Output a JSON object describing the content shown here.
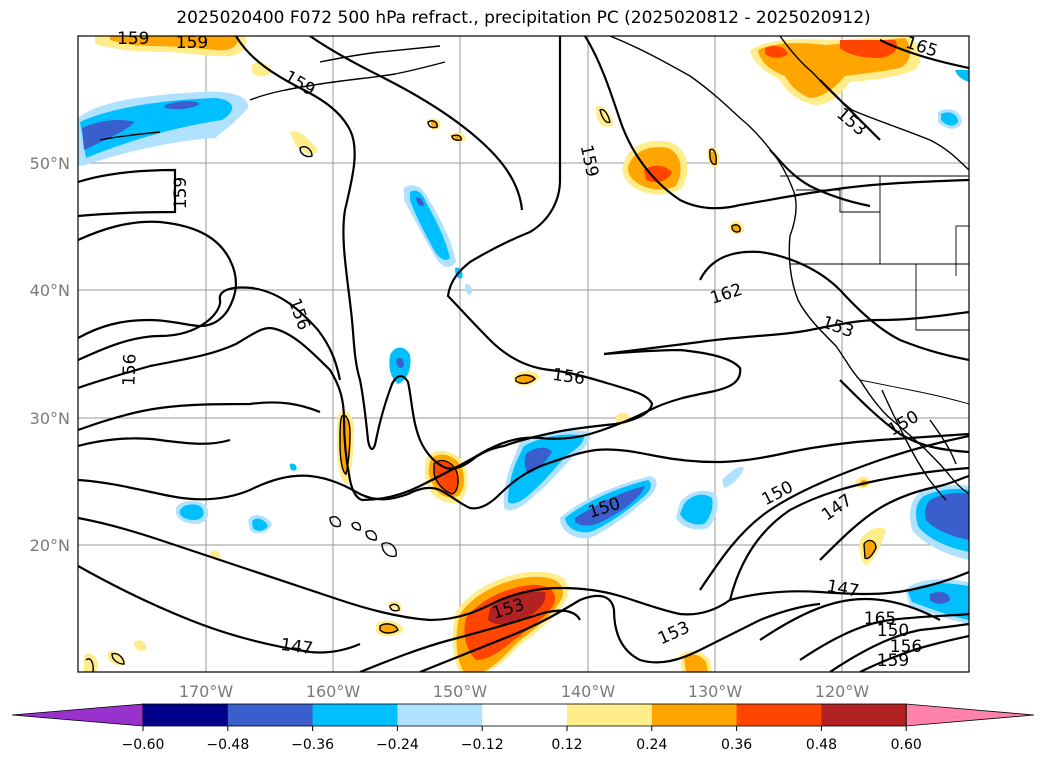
{
  "title": "2025020400 F072 500 hPa refract., precipitation PC (2025020812 - 2025020912)",
  "map": {
    "lon_labels": [
      "170°W",
      "160°W",
      "150°W",
      "140°W",
      "130°W",
      "120°W"
    ],
    "lat_labels": [
      "50°N",
      "40°N",
      "30°N",
      "20°N"
    ],
    "contour_labels": [
      "159",
      "159",
      "159",
      "159",
      "159",
      "156",
      "156",
      "156",
      "162",
      "153",
      "153",
      "153",
      "150",
      "150",
      "150",
      "147",
      "147",
      "147",
      "165",
      "165",
      "153",
      "150",
      "156",
      "159"
    ]
  },
  "colorbar": {
    "ticks": [
      "−0.60",
      "−0.48",
      "−0.36",
      "−0.24",
      "−0.12",
      "0.12",
      "0.24",
      "0.36",
      "0.48",
      "0.60"
    ],
    "colors": [
      "#9932cc",
      "#00008b",
      "#3a5fcd",
      "#00bfff",
      "#b0e2ff",
      "#ffffff",
      "#ffec8b",
      "#ffa500",
      "#ff4500",
      "#b22222",
      "#ff82ab"
    ]
  }
}
